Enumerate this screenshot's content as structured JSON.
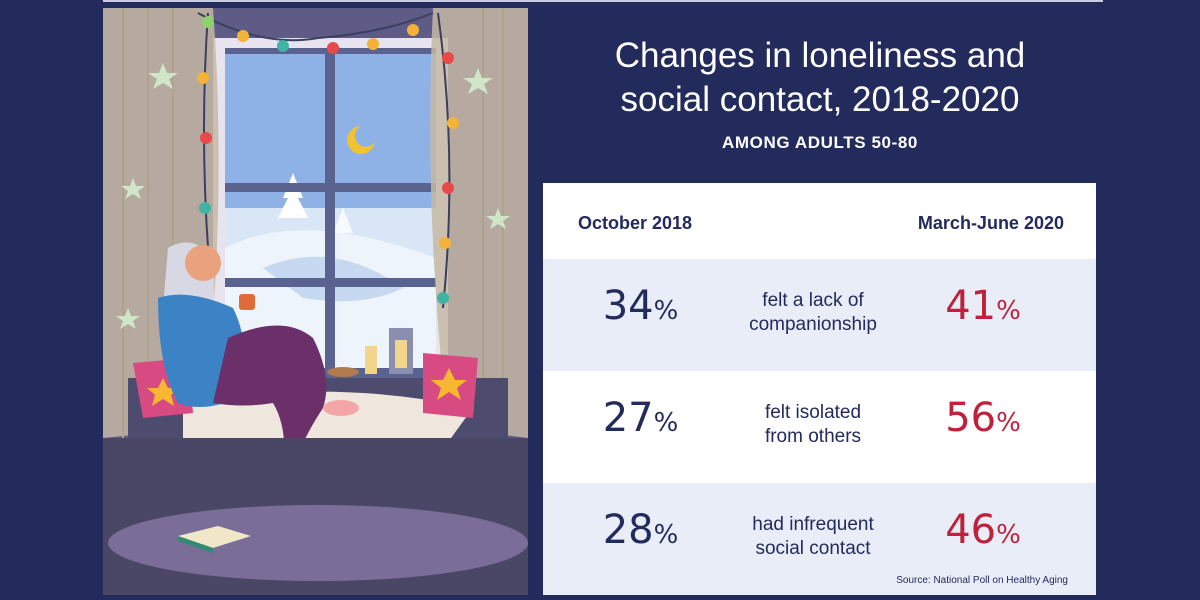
{
  "title_line1": "Changes in loneliness and",
  "title_line2": "social contact, 2018-2020",
  "subtitle": "AMONG ADULTS 50-80",
  "colors": {
    "background": "#232a5c",
    "value_2018": "#232a5c",
    "value_2020": "#c0203a",
    "row_shade": "#e9edf7"
  },
  "chart_data": {
    "type": "table",
    "columns": [
      "October 2018",
      "March-June 2020"
    ],
    "rows": [
      {
        "label_line1": "felt a lack of",
        "label_line2": "companionship",
        "v2018": 34,
        "v2020": 41
      },
      {
        "label_line1": "felt isolated",
        "label_line2": "from others",
        "v2018": 27,
        "v2020": 56
      },
      {
        "label_line1": "had infrequent",
        "label_line2": "social contact",
        "v2018": 28,
        "v2020": 46
      }
    ],
    "unit": "%",
    "source": "Source: National Poll on Healthy Aging"
  }
}
